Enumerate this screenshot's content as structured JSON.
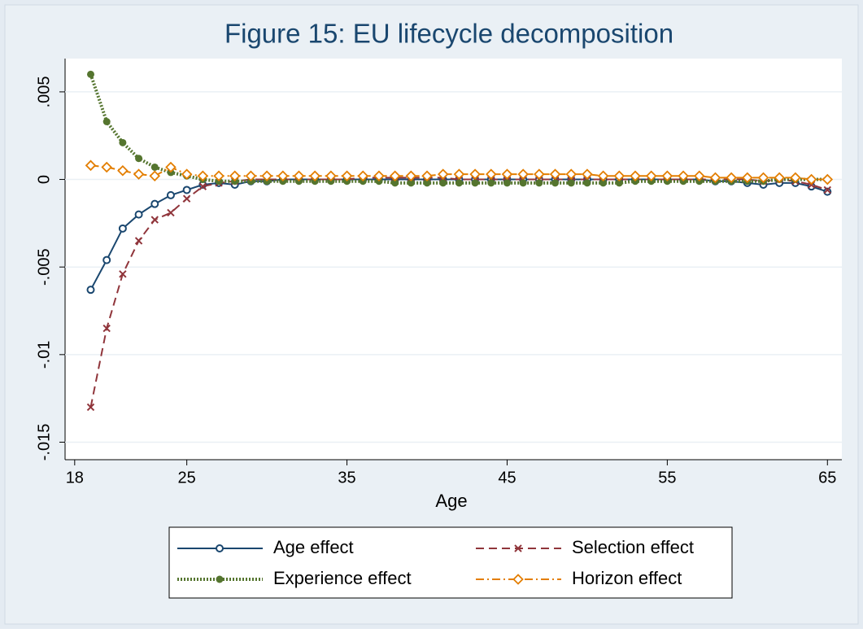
{
  "chart_data": {
    "type": "line",
    "title": "Figure 15: EU lifecycle decomposition",
    "x_label": "Age",
    "x": [
      19,
      20,
      21,
      22,
      23,
      24,
      25,
      26,
      27,
      28,
      29,
      30,
      31,
      32,
      33,
      34,
      35,
      36,
      37,
      38,
      39,
      40,
      41,
      42,
      43,
      44,
      45,
      46,
      47,
      48,
      49,
      50,
      51,
      52,
      53,
      54,
      55,
      56,
      57,
      58,
      59,
      60,
      61,
      62,
      63,
      64,
      65
    ],
    "series": [
      {
        "name": "Age effect",
        "color": "#1a476f",
        "marker": "circle",
        "dash": "solid",
        "values": [
          -0.0063,
          -0.0046,
          -0.0028,
          -0.002,
          -0.0014,
          -0.0009,
          -0.0006,
          -0.0003,
          -0.0002,
          -0.0003,
          -0.0001,
          -0.0001,
          0,
          0,
          0,
          0,
          0,
          0,
          0,
          0,
          0,
          0,
          0,
          0,
          0,
          0,
          0,
          0,
          0,
          0,
          0,
          0,
          0,
          0,
          0,
          0,
          0,
          0,
          0,
          -0.0001,
          -0.0001,
          -0.0002,
          -0.0003,
          -0.0002,
          -0.0002,
          -0.0004,
          -0.0007
        ]
      },
      {
        "name": "Selection effect",
        "color": "#90353b",
        "marker": "x",
        "dash": "dash",
        "values": [
          -0.013,
          -0.0085,
          -0.0054,
          -0.0035,
          -0.0023,
          -0.0019,
          -0.0011,
          -0.0004,
          -0.0002,
          -0.0001,
          0,
          0,
          0,
          0,
          0,
          0,
          0,
          0.0001,
          0.0001,
          0.0001,
          0.0001,
          0.0001,
          0.0001,
          0,
          0,
          0,
          0,
          0,
          0,
          0,
          0,
          0,
          0,
          0,
          0,
          0,
          0,
          0,
          0,
          0,
          0,
          0,
          -0.0001,
          0,
          -0.0001,
          -0.0003,
          -0.0006
        ]
      },
      {
        "name": "Experience effect",
        "color": "#55752f",
        "marker": "dot",
        "dash": "dot",
        "values": [
          0.006,
          0.0033,
          0.0021,
          0.0012,
          0.0007,
          0.0004,
          0.0002,
          0,
          -0.0001,
          -0.0001,
          -0.0001,
          -0.0001,
          -0.0001,
          -0.0001,
          -0.0001,
          -0.0001,
          -0.0001,
          -0.0001,
          -0.0001,
          -0.0002,
          -0.0002,
          -0.0002,
          -0.0002,
          -0.0002,
          -0.0002,
          -0.0002,
          -0.0002,
          -0.0002,
          -0.0002,
          -0.0002,
          -0.0002,
          -0.0002,
          -0.0002,
          -0.0002,
          -0.0001,
          -0.0001,
          -0.0001,
          -0.0001,
          -0.0001,
          -0.0001,
          -0.0001,
          -0.0001,
          -0.0001,
          0,
          0,
          0,
          0
        ]
      },
      {
        "name": "Horizon effect",
        "color": "#e37e00",
        "marker": "diamond",
        "dash": "dashdot",
        "values": [
          0.0008,
          0.0007,
          0.0005,
          0.0003,
          0.0002,
          0.0007,
          0.0003,
          0.0002,
          0.0002,
          0.0002,
          0.0002,
          0.0002,
          0.0002,
          0.0002,
          0.0002,
          0.0002,
          0.0002,
          0.0002,
          0.0002,
          0.0002,
          0.0002,
          0.0002,
          0.0003,
          0.0003,
          0.0003,
          0.0003,
          0.0003,
          0.0003,
          0.0003,
          0.0003,
          0.0003,
          0.0003,
          0.0002,
          0.0002,
          0.0002,
          0.0002,
          0.0002,
          0.0002,
          0.0002,
          0.0001,
          0.0001,
          0.0001,
          0.0001,
          0.0001,
          0.0001,
          0,
          0
        ]
      }
    ],
    "xlim": [
      17.4,
      65.9
    ],
    "xticks": [
      18,
      25,
      35,
      45,
      55,
      65
    ],
    "ylim": [
      -0.016,
      0.0069
    ],
    "yticks": [
      {
        "value": 0.005,
        "label": ".005"
      },
      0,
      {
        "value": -0.005,
        "label": "-.005"
      },
      {
        "value": -0.01,
        "label": "-.01"
      },
      {
        "value": -0.015,
        "label": "-.015"
      }
    ],
    "grid": true,
    "legend": "bottom"
  }
}
